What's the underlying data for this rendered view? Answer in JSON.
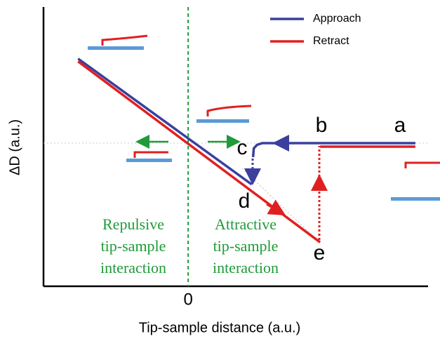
{
  "chart_data": {
    "type": "line",
    "xlabel": "Tip-sample distance (a.u.)",
    "ylabel": "ΔD (a.u.)",
    "xlim": [
      -4.1,
      6.8
    ],
    "ylim": [
      -4.1,
      3.9
    ],
    "xticks": [
      0
    ],
    "legend": "upper right",
    "series": [
      {
        "name": "Approach",
        "color": "#3b3f9e",
        "x": [
          6.44,
          2.1,
          1.95,
          1.86,
          1.84,
          null,
          1.8,
          -3.12
        ],
        "values": [
          0,
          0,
          -0.05,
          -0.15,
          -0.4,
          null,
          -1.18,
          2.42
        ]
      },
      {
        "name": "Retract",
        "color": "#e02020",
        "x": [
          -3.12,
          3.74,
          null,
          3.74,
          6.44
        ],
        "values": [
          2.34,
          -2.84,
          null,
          -0.1,
          -0.1
        ]
      }
    ],
    "point_labels": [
      "a",
      "b",
      "c",
      "d",
      "e"
    ],
    "regions": [
      [
        "Repulsive",
        "tip-sample",
        "interaction"
      ],
      [
        "Attractive",
        "tip-sample",
        "interaction"
      ]
    ]
  }
}
